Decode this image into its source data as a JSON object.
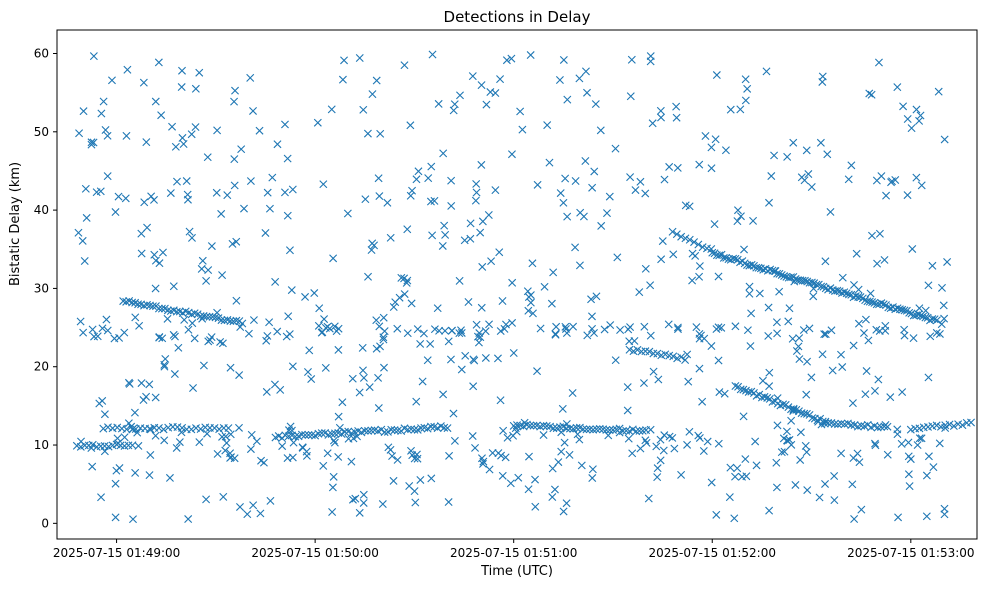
{
  "chart_data": {
    "type": "scatter",
    "title": "Detections in Delay",
    "xlabel": "Time (UTC)",
    "ylabel": "Bistatic Delay (km)",
    "marker": "x",
    "color": "#1f77b4",
    "x_unit": "seconds since 2025-07-15 01:49:00",
    "xlim": [
      -18,
      260
    ],
    "ylim": [
      -2,
      63
    ],
    "x_ticks": [
      {
        "value": 0,
        "label": "2025-07-15 01:49:00"
      },
      {
        "value": 60,
        "label": "2025-07-15 01:50:00"
      },
      {
        "value": 120,
        "label": "2025-07-15 01:51:00"
      },
      {
        "value": 180,
        "label": "2025-07-15 01:52:00"
      },
      {
        "value": 240,
        "label": "2025-07-15 01:53:00"
      }
    ],
    "y_ticks": [
      {
        "value": 0,
        "label": "0"
      },
      {
        "value": 10,
        "label": "10"
      },
      {
        "value": 20,
        "label": "20"
      },
      {
        "value": 30,
        "label": "30"
      },
      {
        "value": 40,
        "label": "40"
      },
      {
        "value": 50,
        "label": "50"
      },
      {
        "value": 60,
        "label": "60"
      }
    ],
    "time_range": [
      -12,
      251
    ],
    "tracks": [
      {
        "name": "track-a",
        "x0": 2,
        "y0": 28.4,
        "x1": 38,
        "y1": 25.6,
        "step": 0.9
      },
      {
        "name": "track-b",
        "x0": 48,
        "y0": 11.0,
        "x1": 100,
        "y1": 12.3,
        "step": 1.0
      },
      {
        "name": "track-c",
        "x0": 120,
        "y0": 12.5,
        "x1": 160,
        "y1": 11.8,
        "step": 1.0
      },
      {
        "name": "track-d",
        "x0": 180,
        "y0": 34.5,
        "x1": 248,
        "y1": 25.8,
        "step": 0.7
      },
      {
        "name": "track-e",
        "x0": 187,
        "y0": 17.5,
        "x1": 215,
        "y1": 12.8,
        "step": 0.8
      },
      {
        "name": "track-f",
        "x0": 212,
        "y0": 12.8,
        "x1": 232,
        "y1": 12.3,
        "step": 1.0
      },
      {
        "name": "track-g",
        "x0": 155,
        "y0": 22.2,
        "x1": 172,
        "y1": 21.0,
        "step": 1.2
      },
      {
        "name": "track-h",
        "x0": 168,
        "y0": 37.2,
        "x1": 181,
        "y1": 34.6,
        "step": 1.3
      },
      {
        "name": "track-i",
        "x0": 240,
        "y0": 12.0,
        "x1": 260,
        "y1": 12.9,
        "step": 1.3
      },
      {
        "name": "track-j",
        "x0": -12,
        "y0": 9.8,
        "x1": 5,
        "y1": 10.1,
        "step": 1.2
      },
      {
        "name": "track-k",
        "x0": -4,
        "y0": 12.2,
        "x1": 35,
        "y1": 12.1,
        "step": 1.4
      }
    ],
    "clusters": [
      {
        "x0": -12,
        "x1": 251,
        "y": 24.5,
        "spread": 1.6,
        "count": 110
      },
      {
        "x0": -12,
        "x1": 251,
        "y": 10.5,
        "spread": 1.8,
        "count": 80
      },
      {
        "x0": -12,
        "x1": 251,
        "y": 8.5,
        "spread": 1.0,
        "count": 30
      }
    ],
    "noise": {
      "count": 600,
      "ymin": 0.5,
      "ymax": 60,
      "seed": 20250715
    }
  }
}
